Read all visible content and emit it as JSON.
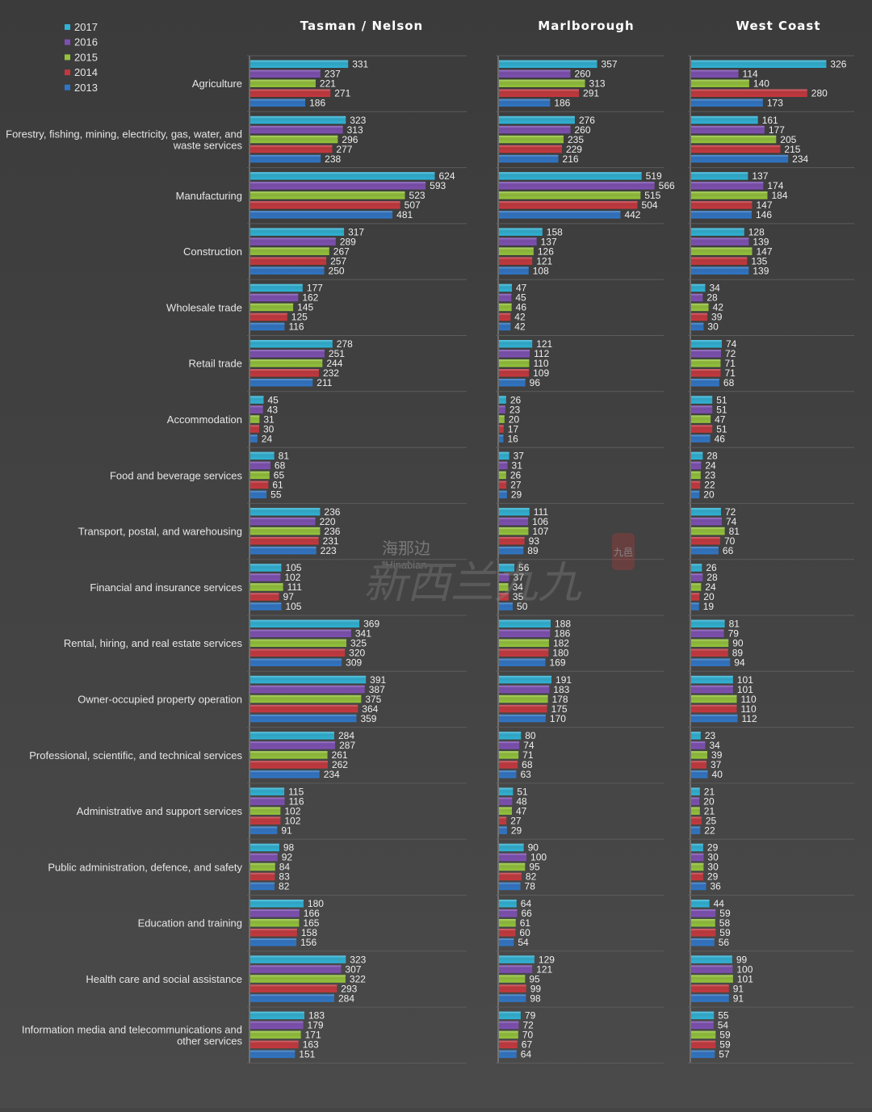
{
  "chart_data": {
    "type": "bar",
    "orientation": "horizontal",
    "panels": [
      "Tasman / Nelson",
      "Marlborough",
      "West Coast"
    ],
    "categories": [
      "Agriculture",
      "Forestry, fishing, mining, electricity, gas, water, and waste services",
      "Manufacturing",
      "Construction",
      "Wholesale trade",
      "Retail trade",
      "Accommodation",
      "Food and beverage services",
      "Transport, postal, and warehousing",
      "Financial and insurance services",
      "Rental, hiring, and real estate services",
      "Owner-occupied property operation",
      "Professional, scientific, and technical services",
      "Administrative and support services",
      "Public administration, defence, and safety",
      "Education and training",
      "Health care and social assistance",
      "Information media and telecommunications and other services"
    ],
    "category_lines": [
      [
        "Agriculture"
      ],
      [
        "Forestry, fishing, mining, electricity, gas, water, and",
        "waste services"
      ],
      [
        "Manufacturing"
      ],
      [
        "Construction"
      ],
      [
        "Wholesale trade"
      ],
      [
        "Retail trade"
      ],
      [
        "Accommodation"
      ],
      [
        "Food and beverage services"
      ],
      [
        "Transport, postal, and warehousing"
      ],
      [
        "Financial and insurance services"
      ],
      [
        "Rental, hiring, and real estate services"
      ],
      [
        "Owner-occupied property operation"
      ],
      [
        "Professional, scientific, and technical services"
      ],
      [
        "Administrative and support services"
      ],
      [
        "Public administration, defence, and safety"
      ],
      [
        "Education and training"
      ],
      [
        "Health care and social assistance"
      ],
      [
        "Information media and telecommunications and",
        "other services"
      ]
    ],
    "series": [
      {
        "name": "2017",
        "color": "#2fb3d6",
        "values": [
          [
            331,
            323,
            624,
            317,
            177,
            278,
            45,
            81,
            236,
            105,
            369,
            391,
            284,
            115,
            98,
            180,
            323,
            183
          ],
          [
            357,
            276,
            519,
            158,
            47,
            121,
            26,
            37,
            111,
            56,
            188,
            191,
            80,
            51,
            90,
            64,
            129,
            79
          ],
          [
            326,
            161,
            137,
            128,
            34,
            74,
            51,
            28,
            72,
            26,
            81,
            101,
            23,
            21,
            29,
            44,
            99,
            55
          ]
        ]
      },
      {
        "name": "2016",
        "color": "#7e4fb3",
        "values": [
          [
            237,
            313,
            593,
            289,
            162,
            251,
            43,
            68,
            220,
            102,
            341,
            387,
            287,
            116,
            92,
            166,
            307,
            179
          ],
          [
            260,
            260,
            566,
            137,
            45,
            112,
            23,
            31,
            106,
            37,
            186,
            183,
            74,
            48,
            100,
            66,
            121,
            72
          ],
          [
            114,
            177,
            174,
            139,
            28,
            72,
            51,
            24,
            74,
            28,
            79,
            101,
            34,
            20,
            30,
            59,
            100,
            54
          ]
        ]
      },
      {
        "name": "2015",
        "color": "#94c43a",
        "values": [
          [
            221,
            296,
            523,
            267,
            145,
            244,
            31,
            65,
            236,
            111,
            325,
            375,
            261,
            102,
            84,
            165,
            322,
            171
          ],
          [
            313,
            235,
            515,
            126,
            46,
            110,
            20,
            26,
            107,
            34,
            182,
            178,
            71,
            47,
            95,
            61,
            95,
            70
          ],
          [
            140,
            205,
            184,
            147,
            42,
            71,
            47,
            23,
            81,
            24,
            90,
            110,
            39,
            21,
            30,
            58,
            101,
            59
          ]
        ]
      },
      {
        "name": "2014",
        "color": "#c6373d",
        "values": [
          [
            271,
            277,
            507,
            257,
            125,
            232,
            30,
            61,
            231,
            97,
            320,
            364,
            262,
            102,
            83,
            158,
            293,
            163
          ],
          [
            291,
            229,
            504,
            121,
            42,
            109,
            17,
            27,
            93,
            35,
            180,
            175,
            68,
            27,
            82,
            60,
            99,
            67
          ],
          [
            280,
            215,
            147,
            135,
            39,
            71,
            51,
            22,
            70,
            20,
            89,
            110,
            37,
            25,
            29,
            59,
            91,
            59
          ]
        ]
      },
      {
        "name": "2013",
        "color": "#2f75c6",
        "values": [
          [
            186,
            238,
            481,
            250,
            116,
            211,
            24,
            55,
            223,
            105,
            309,
            359,
            234,
            91,
            82,
            156,
            284,
            151
          ],
          [
            186,
            216,
            442,
            108,
            42,
            96,
            16,
            29,
            89,
            50,
            169,
            170,
            63,
            29,
            78,
            54,
            98,
            64
          ],
          [
            173,
            234,
            146,
            139,
            30,
            68,
            46,
            20,
            66,
            19,
            94,
            112,
            40,
            22,
            36,
            56,
            91,
            57
          ]
        ]
      }
    ],
    "legend": {
      "position": "top-left",
      "order": [
        "2017",
        "2016",
        "2015",
        "2014",
        "2013"
      ]
    },
    "gridlines": true
  },
  "watermark": {
    "text_cn": "海那边",
    "text_en": "Hinabian",
    "text_cn2": "新西兰九九",
    "seal": "九邑"
  }
}
